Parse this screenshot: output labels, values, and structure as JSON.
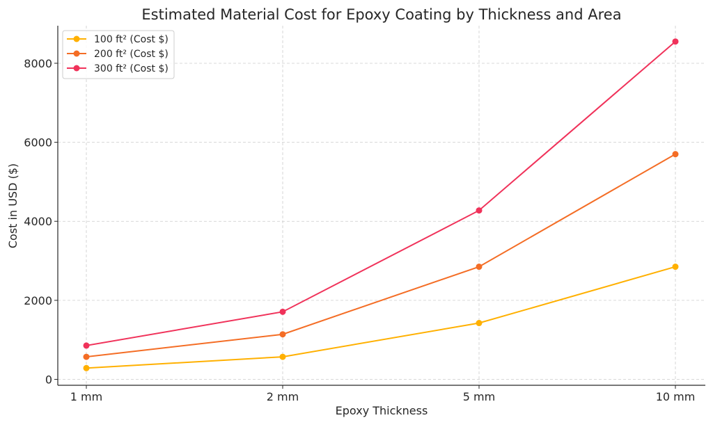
{
  "chart_data": {
    "type": "line",
    "title": "Estimated Material Cost for Epoxy Coating by Thickness and Area",
    "xlabel": "Epoxy Thickness",
    "ylabel": "Cost in USD ($)",
    "categories": [
      "1 mm",
      "2 mm",
      "5 mm",
      "10 mm"
    ],
    "ylim": [
      -150,
      8950
    ],
    "yticks": [
      0,
      2000,
      4000,
      6000,
      8000
    ],
    "grid": true,
    "legend_position": "top-left",
    "series": [
      {
        "name": "100 ft² (Cost $)",
        "color": "#FFB000",
        "values": [
          285,
          570,
          1425,
          2850
        ]
      },
      {
        "name": "200 ft² (Cost $)",
        "color": "#F46D25",
        "values": [
          570,
          1140,
          2850,
          5700
        ]
      },
      {
        "name": "300 ft² (Cost $)",
        "color": "#F0325A",
        "values": [
          855,
          1710,
          4275,
          8550
        ]
      }
    ]
  }
}
